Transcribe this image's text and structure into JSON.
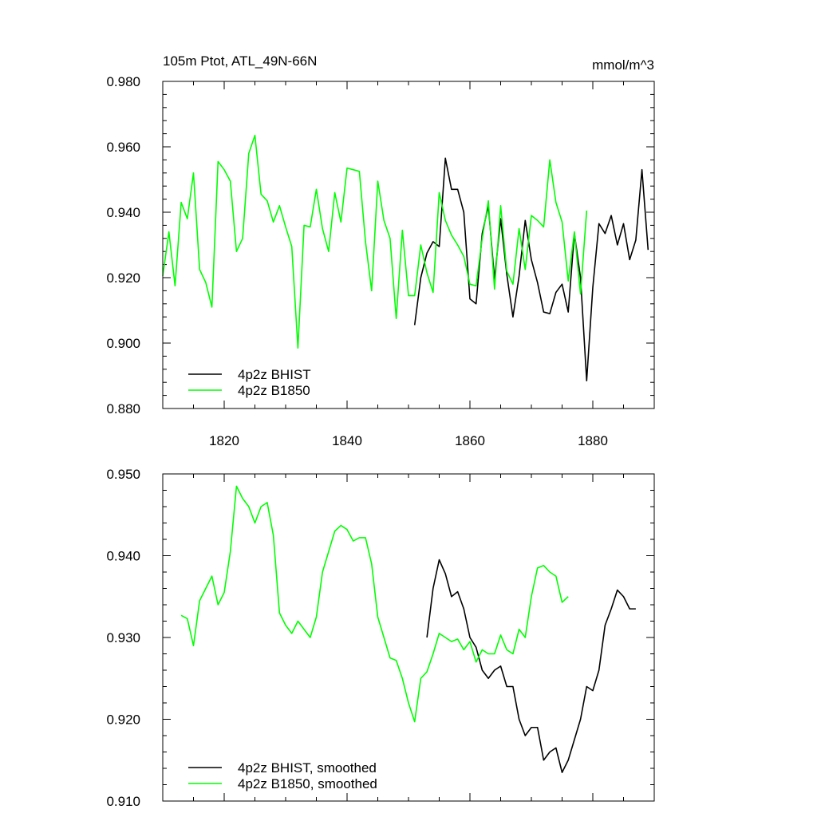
{
  "chart_data": [
    {
      "type": "line",
      "title_left": "105m Ptot, ATL_49N-66N",
      "title_right": "mmol/m^3",
      "xlim": [
        1810,
        1890
      ],
      "ylim": [
        0.88,
        0.98
      ],
      "xticks_major": [
        1820,
        1840,
        1860,
        1880
      ],
      "xtick_labels": [
        "1820",
        "1840",
        "1860",
        "1880"
      ],
      "yticks_major": [
        0.88,
        0.9,
        0.92,
        0.94,
        0.96,
        0.98
      ],
      "ytick_labels": [
        "0.880",
        "0.900",
        "0.920",
        "0.940",
        "0.960",
        "0.980"
      ],
      "legend_position": "bottom-left",
      "series": [
        {
          "name": "4p2z BHIST",
          "color": "#000000",
          "x": [
            1851,
            1852,
            1853,
            1854,
            1855,
            1856,
            1857,
            1858,
            1859,
            1860,
            1861,
            1862,
            1863,
            1864,
            1865,
            1866,
            1867,
            1868,
            1869,
            1870,
            1871,
            1872,
            1873,
            1874,
            1875,
            1876,
            1877,
            1878,
            1879,
            1880,
            1881,
            1882,
            1883,
            1884,
            1885,
            1886,
            1887,
            1888,
            1889
          ],
          "y": [
            0.9055,
            0.92,
            0.9275,
            0.931,
            0.9295,
            0.9565,
            0.947,
            0.947,
            0.94,
            0.9135,
            0.912,
            0.9335,
            0.942,
            0.9195,
            0.938,
            0.921,
            0.908,
            0.9205,
            0.9375,
            0.9255,
            0.9185,
            0.9095,
            0.909,
            0.9155,
            0.918,
            0.9095,
            0.9335,
            0.92,
            0.8885,
            0.917,
            0.9365,
            0.9335,
            0.939,
            0.93,
            0.9365,
            0.9255,
            0.9315,
            0.953,
            0.9285
          ]
        },
        {
          "name": "4p2z B1850",
          "color": "#00ff00",
          "x": [
            1810,
            1811,
            1812,
            1813,
            1814,
            1815,
            1816,
            1817,
            1818,
            1819,
            1820,
            1821,
            1822,
            1823,
            1824,
            1825,
            1826,
            1827,
            1828,
            1829,
            1830,
            1831,
            1832,
            1833,
            1834,
            1835,
            1836,
            1837,
            1838,
            1839,
            1840,
            1841,
            1842,
            1843,
            1844,
            1845,
            1846,
            1847,
            1848,
            1849,
            1850,
            1851,
            1852,
            1853,
            1854,
            1855,
            1856,
            1857,
            1858,
            1859,
            1860,
            1861,
            1862,
            1863,
            1864,
            1865,
            1866,
            1867,
            1868,
            1869,
            1870,
            1871,
            1872,
            1873,
            1874,
            1875,
            1876,
            1877,
            1878,
            1879
          ],
          "y": [
            0.9205,
            0.934,
            0.9175,
            0.943,
            0.938,
            0.952,
            0.9225,
            0.9185,
            0.911,
            0.9555,
            0.953,
            0.9495,
            0.928,
            0.932,
            0.958,
            0.9635,
            0.9455,
            0.9435,
            0.937,
            0.942,
            0.9355,
            0.9295,
            0.8985,
            0.936,
            0.9355,
            0.947,
            0.935,
            0.928,
            0.946,
            0.937,
            0.9535,
            0.953,
            0.9525,
            0.931,
            0.916,
            0.9495,
            0.9375,
            0.932,
            0.9075,
            0.9345,
            0.9145,
            0.9145,
            0.93,
            0.9215,
            0.9155,
            0.946,
            0.9375,
            0.933,
            0.93,
            0.9265,
            0.918,
            0.9175,
            0.932,
            0.9435,
            0.9165,
            0.942,
            0.922,
            0.918,
            0.935,
            0.9225,
            0.939,
            0.9375,
            0.9355,
            0.956,
            0.943,
            0.937,
            0.919,
            0.934,
            0.915,
            0.9405
          ]
        }
      ]
    },
    {
      "type": "line",
      "xlim": [
        1810,
        1890
      ],
      "ylim": [
        0.91,
        0.95
      ],
      "yticks_major": [
        0.91,
        0.92,
        0.93,
        0.94,
        0.95
      ],
      "ytick_labels": [
        "0.910",
        "0.920",
        "0.930",
        "0.940",
        "0.950"
      ],
      "legend_position": "bottom-left",
      "series": [
        {
          "name": "4p2z BHIST, smoothed",
          "color": "#000000",
          "x": [
            1853,
            1854,
            1855,
            1856,
            1857,
            1858,
            1859,
            1860,
            1861,
            1862,
            1863,
            1864,
            1865,
            1866,
            1867,
            1868,
            1869,
            1870,
            1871,
            1872,
            1873,
            1874,
            1875,
            1876,
            1877,
            1878,
            1879,
            1880,
            1881,
            1882,
            1883,
            1884,
            1885,
            1886,
            1887
          ],
          "y": [
            0.93,
            0.936,
            0.9395,
            0.9378,
            0.935,
            0.9356,
            0.9335,
            0.93,
            0.9288,
            0.926,
            0.925,
            0.926,
            0.9265,
            0.924,
            0.924,
            0.92,
            0.918,
            0.919,
            0.919,
            0.915,
            0.916,
            0.9165,
            0.9135,
            0.915,
            0.9175,
            0.92,
            0.924,
            0.9235,
            0.926,
            0.9315,
            0.9335,
            0.9358,
            0.935,
            0.9335,
            0.9335
          ]
        },
        {
          "name": "4p2z B1850, smoothed",
          "color": "#00ff00",
          "x": [
            1813,
            1814,
            1815,
            1816,
            1817,
            1818,
            1819,
            1820,
            1821,
            1822,
            1823,
            1824,
            1825,
            1826,
            1827,
            1828,
            1829,
            1830,
            1831,
            1832,
            1833,
            1834,
            1835,
            1836,
            1837,
            1838,
            1839,
            1840,
            1841,
            1842,
            1843,
            1844,
            1845,
            1846,
            1847,
            1848,
            1849,
            1850,
            1851,
            1852,
            1853,
            1854,
            1855,
            1856,
            1857,
            1858,
            1859,
            1860,
            1861,
            1862,
            1863,
            1864,
            1865,
            1866,
            1867,
            1868,
            1869,
            1870,
            1871,
            1872,
            1873,
            1874,
            1875,
            1876
          ],
          "y": [
            0.9327,
            0.9323,
            0.929,
            0.9345,
            0.936,
            0.9375,
            0.934,
            0.9355,
            0.9405,
            0.9485,
            0.947,
            0.946,
            0.944,
            0.946,
            0.9465,
            0.9425,
            0.933,
            0.9315,
            0.9305,
            0.932,
            0.931,
            0.93,
            0.9325,
            0.938,
            0.9405,
            0.943,
            0.9437,
            0.9432,
            0.9418,
            0.9422,
            0.9422,
            0.939,
            0.9325,
            0.93,
            0.9275,
            0.9272,
            0.925,
            0.922,
            0.9197,
            0.925,
            0.9258,
            0.928,
            0.9305,
            0.93,
            0.9295,
            0.9298,
            0.9285,
            0.9295,
            0.927,
            0.9285,
            0.928,
            0.928,
            0.9303,
            0.9285,
            0.928,
            0.931,
            0.93,
            0.935,
            0.9385,
            0.9388,
            0.938,
            0.9375,
            0.9343,
            0.935
          ]
        }
      ]
    }
  ]
}
